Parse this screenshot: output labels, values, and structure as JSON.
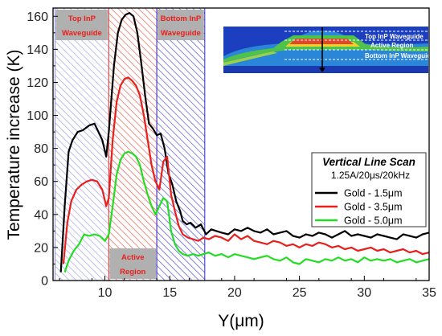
{
  "chart_data": {
    "type": "line",
    "xlabel": "Y(μm)",
    "ylabel": "Temperature increase (K)",
    "xlim": [
      6,
      35
    ],
    "ylim": [
      0,
      165
    ],
    "xticks": [
      10,
      15,
      20,
      25,
      30,
      35
    ],
    "yticks": [
      0,
      20,
      40,
      60,
      80,
      100,
      120,
      140,
      160
    ],
    "grid": false,
    "legend_position": "middle-right",
    "legend": {
      "title": "Vertical Line Scan",
      "subtitle": "1.25A/20μs/20kHz"
    },
    "regions": [
      {
        "label_lines": [
          "Top InP",
          "Waveguide"
        ],
        "x0": 6.15,
        "x1": 10.3,
        "color": "#8c8ce0",
        "label_pos": "top"
      },
      {
        "label_lines": [
          "Active",
          "Region"
        ],
        "x0": 10.3,
        "x1": 14.0,
        "color": "#e03a2a",
        "label_pos": "bottom"
      },
      {
        "label_lines": [
          "Bottom InP",
          "Waveguide"
        ],
        "x0": 14.0,
        "x1": 17.7,
        "color": "#2a2ad0",
        "label_pos": "top"
      }
    ],
    "inset": {
      "labels": [
        "Top InP Waveguide",
        "Active Region",
        "Bottom InP Waveguide"
      ]
    },
    "series": [
      {
        "name": "Gold - 1.5μm",
        "color": "#000000",
        "x": [
          6.6,
          6.9,
          7.2,
          7.5,
          7.9,
          8.3,
          8.8,
          9.2,
          9.5,
          9.8,
          10.1,
          10.3,
          10.7,
          11.0,
          11.3,
          11.6,
          11.9,
          12.2,
          12.5,
          12.8,
          13.1,
          13.4,
          13.7,
          14.0,
          14.3,
          14.6,
          14.9,
          15.2,
          15.5,
          15.8,
          16.0,
          16.3,
          16.6,
          17.0,
          17.4,
          17.8,
          18.2,
          18.6,
          19.0,
          19.5,
          20.0,
          20.5,
          21.0,
          21.5,
          22.0,
          22.5,
          23.0,
          23.5,
          24.0,
          24.5,
          25.0,
          25.5,
          26.0,
          26.5,
          27.0,
          27.5,
          28.0,
          28.5,
          29.0,
          29.5,
          30.0,
          30.5,
          31.0,
          31.5,
          32.0,
          32.5,
          33.0,
          33.5,
          34.0,
          34.5,
          35.0
        ],
        "y": [
          5,
          45,
          78,
          85,
          90,
          91,
          94,
          95,
          90,
          85,
          75,
          90,
          130,
          150,
          158,
          161,
          162,
          160,
          150,
          132,
          112,
          95,
          92,
          88,
          89,
          80,
          65,
          58,
          48,
          42,
          36,
          34,
          35,
          32,
          34,
          28,
          31,
          30,
          29,
          28,
          31,
          30,
          32,
          30,
          29,
          31,
          28,
          29,
          30,
          27,
          26,
          28,
          27,
          29,
          28,
          26,
          28,
          30,
          27,
          28,
          27,
          26,
          28,
          27,
          26,
          25,
          28,
          27,
          26,
          28,
          29
        ]
      },
      {
        "name": "Gold - 3.5μm",
        "color": "#e8201c",
        "x": [
          6.8,
          7.1,
          7.4,
          7.8,
          8.2,
          8.6,
          9.0,
          9.4,
          9.8,
          10.1,
          10.3,
          10.6,
          10.9,
          11.2,
          11.5,
          11.8,
          12.1,
          12.4,
          12.7,
          13.0,
          13.3,
          13.6,
          13.9,
          14.2,
          14.5,
          14.8,
          15.1,
          15.4,
          15.7,
          16.0,
          16.4,
          16.8,
          17.2,
          17.6,
          18.0,
          18.5,
          19.0,
          19.5,
          20.0,
          20.5,
          21.0,
          21.5,
          22.0,
          22.5,
          23.0,
          23.5,
          24.0,
          24.5,
          25.0,
          25.5,
          26.0,
          26.5,
          27.0,
          27.5,
          28.0,
          28.5,
          29.0,
          29.5,
          30.0,
          30.5,
          31.0,
          31.5,
          32.0,
          32.5,
          33.0,
          33.5,
          34.0,
          34.5,
          35.0
        ],
        "y": [
          10,
          35,
          48,
          55,
          58,
          60,
          61,
          60,
          55,
          45,
          50,
          85,
          108,
          118,
          122,
          123,
          121,
          118,
          112,
          100,
          85,
          70,
          60,
          55,
          72,
          75,
          52,
          42,
          33,
          28,
          26,
          25,
          24,
          26,
          25,
          27,
          26,
          24,
          28,
          25,
          27,
          24,
          23,
          22,
          24,
          23,
          21,
          22,
          20,
          22,
          21,
          23,
          22,
          20,
          21,
          19,
          20,
          18,
          19,
          20,
          18,
          19,
          17,
          18,
          19,
          17,
          18,
          16,
          17
        ]
      },
      {
        "name": "Gold - 5.0μm",
        "color": "#22dd22",
        "x": [
          6.9,
          7.2,
          7.6,
          8.0,
          8.4,
          8.8,
          9.2,
          9.6,
          10.0,
          10.3,
          10.6,
          10.9,
          11.2,
          11.5,
          11.8,
          12.1,
          12.4,
          12.7,
          13.0,
          13.3,
          13.6,
          13.9,
          14.2,
          14.5,
          14.8,
          15.1,
          15.4,
          15.7,
          16.0,
          16.4,
          16.8,
          17.2,
          17.6,
          18.0,
          18.5,
          19.0,
          19.5,
          20.0,
          20.5,
          21.0,
          21.5,
          22.0,
          22.5,
          23.0,
          23.5,
          24.0,
          24.5,
          25.0,
          25.5,
          26.0,
          26.5,
          27.0,
          27.5,
          28.0,
          28.5,
          29.0,
          29.5,
          30.0,
          30.5,
          31.0,
          31.5,
          32.0,
          32.5,
          33.0,
          33.5,
          34.0,
          34.5,
          35.0
        ],
        "y": [
          5,
          12,
          18,
          22,
          28,
          27,
          28,
          27,
          24,
          28,
          45,
          64,
          73,
          77,
          78,
          77,
          75,
          70,
          60,
          52,
          45,
          40,
          45,
          50,
          48,
          30,
          22,
          18,
          16,
          15,
          16,
          15,
          16,
          17,
          15,
          16,
          14,
          16,
          15,
          14,
          13,
          14,
          15,
          13,
          12,
          14,
          11,
          10,
          13,
          12,
          11,
          13,
          12,
          14,
          12,
          13,
          11,
          14,
          12,
          13,
          12,
          13,
          11,
          12,
          13,
          11,
          12,
          13
        ]
      }
    ]
  }
}
